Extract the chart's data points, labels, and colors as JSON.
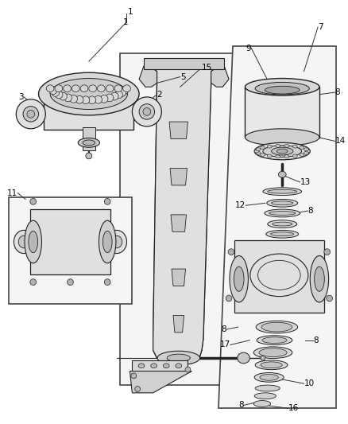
{
  "bg_color": "#ffffff",
  "label_color": "#000000",
  "line_color": "#555555",
  "dark_line": "#222222",
  "mid_line": "#444444",
  "font_size": 7.5,
  "gray1": "#e8e8e8",
  "gray2": "#d0d0d0",
  "gray3": "#b8b8b8",
  "gray4": "#c8c8c8",
  "gray5": "#f2f2f2"
}
